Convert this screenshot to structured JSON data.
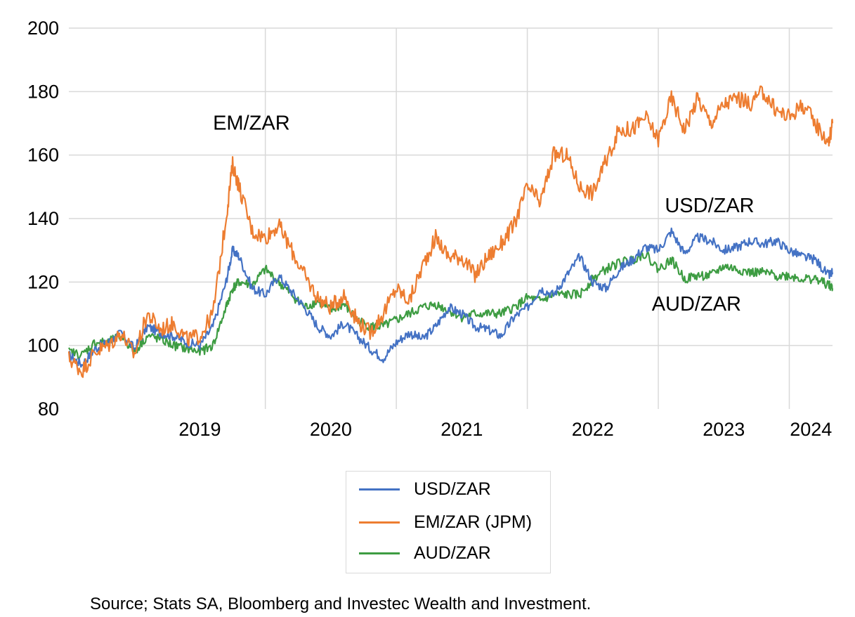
{
  "chart_data": {
    "type": "line",
    "title": "",
    "xlabel": "",
    "ylabel": "",
    "ylim": [
      80,
      200
    ],
    "yticks": [
      80,
      100,
      120,
      140,
      160,
      180,
      200
    ],
    "xlim": [
      2018.5,
      2024.33
    ],
    "xtick_labels": [
      "2019",
      "2020",
      "2021",
      "2022",
      "2023",
      "2024"
    ],
    "grid": true,
    "legend_position": "bottom",
    "annotations": [
      {
        "text": "EM/ZAR",
        "x": 2019.6,
        "y": 168
      },
      {
        "text": "USD/ZAR",
        "x": 2023.05,
        "y": 142
      },
      {
        "text": "AUD/ZAR",
        "x": 2022.95,
        "y": 111
      }
    ],
    "source": "Source; Stats SA, Bloomberg and Investec Wealth and Investment.",
    "series": [
      {
        "name": "USD/ZAR",
        "color": "#4472c4",
        "x": [
          2018.5,
          2018.6,
          2018.7,
          2018.8,
          2018.9,
          2019.0,
          2019.1,
          2019.2,
          2019.3,
          2019.4,
          2019.5,
          2019.6,
          2019.7,
          2019.75,
          2019.8,
          2019.9,
          2020.0,
          2020.1,
          2020.2,
          2020.3,
          2020.4,
          2020.5,
          2020.6,
          2020.7,
          2020.8,
          2020.9,
          2021.0,
          2021.1,
          2021.2,
          2021.3,
          2021.4,
          2021.5,
          2021.6,
          2021.7,
          2021.8,
          2021.9,
          2022.0,
          2022.1,
          2022.2,
          2022.3,
          2022.4,
          2022.5,
          2022.6,
          2022.7,
          2022.8,
          2022.9,
          2023.0,
          2023.1,
          2023.2,
          2023.3,
          2023.4,
          2023.5,
          2023.6,
          2023.7,
          2023.8,
          2023.9,
          2024.0,
          2024.1,
          2024.2,
          2024.3,
          2024.33
        ],
        "y": [
          97,
          94,
          99,
          101,
          104,
          99,
          106,
          104,
          103,
          101,
          100,
          106,
          120,
          130,
          128,
          118,
          116,
          122,
          117,
          112,
          106,
          103,
          107,
          103,
          99,
          96,
          101,
          104,
          102,
          106,
          112,
          110,
          106,
          105,
          103,
          109,
          112,
          118,
          116,
          122,
          128,
          120,
          118,
          124,
          127,
          131,
          130,
          136,
          129,
          134,
          133,
          130,
          131,
          133,
          132,
          133,
          130,
          128,
          127,
          122,
          123
        ]
      },
      {
        "name": "EM/ZAR (JPM)",
        "color": "#ed7d31",
        "x": [
          2018.5,
          2018.6,
          2018.7,
          2018.8,
          2018.9,
          2019.0,
          2019.1,
          2019.2,
          2019.3,
          2019.4,
          2019.5,
          2019.6,
          2019.7,
          2019.75,
          2019.8,
          2019.9,
          2020.0,
          2020.1,
          2020.2,
          2020.3,
          2020.4,
          2020.5,
          2020.6,
          2020.7,
          2020.8,
          2020.9,
          2021.0,
          2021.1,
          2021.2,
          2021.3,
          2021.4,
          2021.5,
          2021.6,
          2021.7,
          2021.8,
          2021.9,
          2022.0,
          2022.1,
          2022.2,
          2022.3,
          2022.4,
          2022.5,
          2022.6,
          2022.7,
          2022.8,
          2022.9,
          2023.0,
          2023.1,
          2023.2,
          2023.3,
          2023.4,
          2023.5,
          2023.6,
          2023.7,
          2023.8,
          2023.9,
          2024.0,
          2024.1,
          2024.2,
          2024.3,
          2024.33
        ],
        "y": [
          96,
          92,
          98,
          100,
          104,
          97,
          110,
          105,
          107,
          102,
          103,
          110,
          140,
          157,
          150,
          136,
          134,
          138,
          130,
          122,
          115,
          112,
          116,
          108,
          104,
          110,
          118,
          114,
          125,
          134,
          128,
          128,
          122,
          128,
          132,
          138,
          150,
          145,
          160,
          160,
          150,
          148,
          158,
          168,
          168,
          172,
          165,
          178,
          168,
          178,
          170,
          176,
          178,
          176,
          180,
          174,
          172,
          176,
          170,
          164,
          170
        ]
      },
      {
        "name": "AUD/ZAR",
        "color": "#3d9c42",
        "x": [
          2018.5,
          2018.6,
          2018.7,
          2018.8,
          2018.9,
          2019.0,
          2019.1,
          2019.2,
          2019.3,
          2019.4,
          2019.5,
          2019.6,
          2019.7,
          2019.75,
          2019.8,
          2019.9,
          2020.0,
          2020.1,
          2020.2,
          2020.3,
          2020.4,
          2020.5,
          2020.6,
          2020.7,
          2020.8,
          2020.9,
          2021.0,
          2021.1,
          2021.2,
          2021.3,
          2021.4,
          2021.5,
          2021.6,
          2021.7,
          2021.8,
          2021.9,
          2022.0,
          2022.1,
          2022.2,
          2022.3,
          2022.4,
          2022.5,
          2022.6,
          2022.7,
          2022.8,
          2022.9,
          2023.0,
          2023.1,
          2023.2,
          2023.3,
          2023.4,
          2023.5,
          2023.6,
          2023.7,
          2023.8,
          2023.9,
          2024.0,
          2024.1,
          2024.2,
          2024.3,
          2024.33
        ],
        "y": [
          98,
          97,
          101,
          101,
          103,
          98,
          103,
          102,
          100,
          99,
          98,
          100,
          112,
          118,
          120,
          119,
          124,
          120,
          116,
          112,
          114,
          111,
          113,
          108,
          106,
          106,
          108,
          110,
          112,
          113,
          111,
          109,
          110,
          110,
          110,
          112,
          115,
          114,
          116,
          116,
          116,
          121,
          124,
          126,
          127,
          129,
          124,
          127,
          121,
          122,
          122,
          125,
          124,
          123,
          123,
          122,
          122,
          121,
          121,
          119,
          118
        ]
      }
    ]
  }
}
